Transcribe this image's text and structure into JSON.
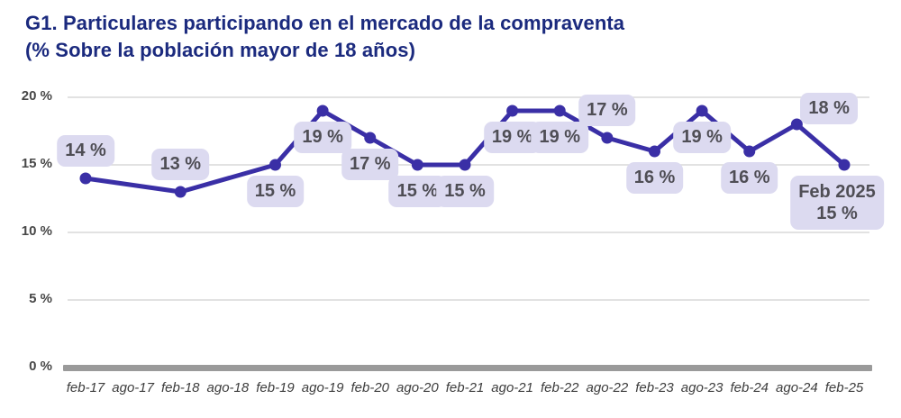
{
  "header": {
    "title": "G1. Particulares participando en el mercado de la compraventa",
    "subtitle": "(% Sobre la población mayor de 18 años)"
  },
  "chart_data": {
    "type": "line",
    "title": "G1. Particulares participando en el mercado de la compraventa",
    "subtitle": "(% Sobre la población mayor de 18 años)",
    "xlabel": "",
    "ylabel": "",
    "ylim": [
      0,
      20
    ],
    "grid": true,
    "legend": "none",
    "x_tick_labels": [
      "feb-17",
      "ago-17",
      "feb-18",
      "ago-18",
      "feb-19",
      "ago-19",
      "feb-20",
      "ago-20",
      "feb-21",
      "ago-21",
      "feb-22",
      "ago-22",
      "feb-23",
      "ago-23",
      "feb-24",
      "ago-24",
      "feb-25"
    ],
    "y_ticks": [
      {
        "value": 0,
        "label": "0 %"
      },
      {
        "value": 5,
        "label": "5 %"
      },
      {
        "value": 10,
        "label": "10 %"
      },
      {
        "value": 15,
        "label": "15 %"
      },
      {
        "value": 20,
        "label": "20 %"
      }
    ],
    "series": [
      {
        "name": "Particulares participando en el mercado de la compraventa (%)",
        "points": [
          {
            "x": "feb-17",
            "value": 14,
            "label": "14 %",
            "label_pos": "above"
          },
          {
            "x": "feb-18",
            "value": 13,
            "label": "13 %",
            "label_pos": "above"
          },
          {
            "x": "feb-19",
            "value": 15,
            "label": "15 %",
            "label_pos": "below"
          },
          {
            "x": "ago-19",
            "value": 19,
            "label": "19 %",
            "label_pos": "below"
          },
          {
            "x": "feb-20",
            "value": 17,
            "label": "17 %",
            "label_pos": "below"
          },
          {
            "x": "ago-20",
            "value": 15,
            "label": "15 %",
            "label_pos": "below"
          },
          {
            "x": "feb-21",
            "value": 15,
            "label": "15 %",
            "label_pos": "below"
          },
          {
            "x": "ago-21",
            "value": 19,
            "label": "19 %",
            "label_pos": "below"
          },
          {
            "x": "feb-22",
            "value": 19,
            "label": "19 %",
            "label_pos": "below"
          },
          {
            "x": "ago-22",
            "value": 17,
            "label": "17 %",
            "label_pos": "above"
          },
          {
            "x": "feb-23",
            "value": 16,
            "label": "16 %",
            "label_pos": "below"
          },
          {
            "x": "ago-23",
            "value": 19,
            "label": "19 %",
            "label_pos": "below"
          },
          {
            "x": "feb-24",
            "value": 16,
            "label": "16 %",
            "label_pos": "below"
          },
          {
            "x": "ago-24",
            "value": 18,
            "label": "18 %",
            "label_pos": "above-right"
          },
          {
            "x": "feb-25",
            "value": 15,
            "label_lines": [
              "Feb 2025",
              "15 %"
            ],
            "label_pos": "below-left"
          }
        ]
      }
    ],
    "colors": {
      "line": "#3a2fa6",
      "marker": "#3a2fa6",
      "label_box_bg": "#dcdaf0",
      "label_text": "#4f4e55",
      "grid": "#d9d9d9",
      "axis_baseline": "#9a9a9a",
      "title": "#1b2a7e",
      "y_tick_text": "#474747",
      "x_tick_text": "#3d3d3d"
    }
  }
}
